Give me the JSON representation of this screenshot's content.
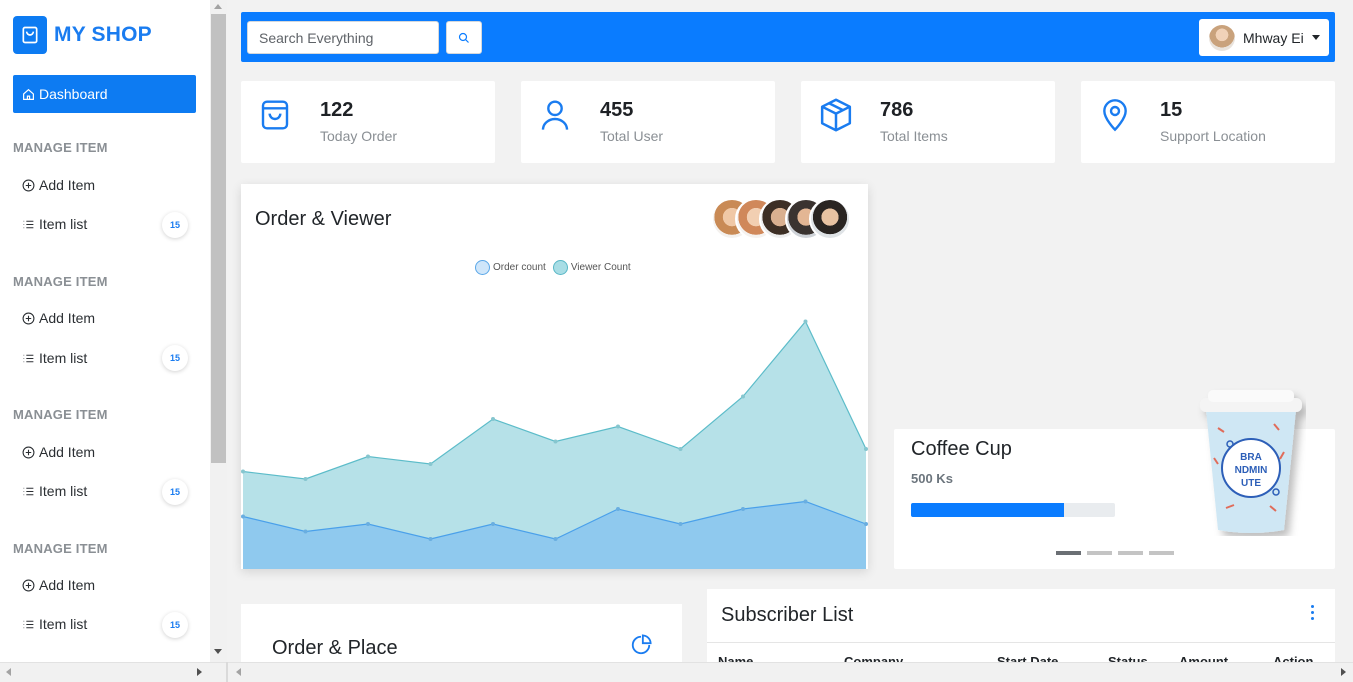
{
  "brand": {
    "name": "MY SHOP"
  },
  "sidebar": {
    "dashboard_label": "Dashboard",
    "sections": [
      {
        "title": "MANAGE ITEM",
        "add_label": "Add Item",
        "list_label": "Item list",
        "count": "15"
      },
      {
        "title": "MANAGE ITEM",
        "add_label": "Add Item",
        "list_label": "Item list",
        "count": "15"
      },
      {
        "title": "MANAGE ITEM",
        "add_label": "Add Item",
        "list_label": "Item list",
        "count": "15"
      },
      {
        "title": "MANAGE ITEM",
        "add_label": "Add Item",
        "list_label": "Item list",
        "count": "15"
      }
    ]
  },
  "topbar": {
    "search_placeholder": "Search Everything",
    "user_name": "Mhway Ei"
  },
  "stats": [
    {
      "value": "122",
      "label": "Today Order",
      "icon": "shopping-bag-icon"
    },
    {
      "value": "455",
      "label": "Total User",
      "icon": "user-icon"
    },
    {
      "value": "786",
      "label": "Total Items",
      "icon": "box-icon"
    },
    {
      "value": "15",
      "label": "Support Location",
      "icon": "location-pin-icon"
    }
  ],
  "order_viewer": {
    "title": "Order & Viewer",
    "chart_data": {
      "type": "area",
      "series": [
        {
          "name": "Order count",
          "values": [
            7,
            5,
            6,
            4,
            6,
            4,
            8,
            6,
            8,
            9,
            6
          ],
          "color": "#8fc9ee"
        },
        {
          "name": "Viewer Count",
          "values": [
            13,
            12,
            15,
            14,
            20,
            17,
            19,
            16,
            23,
            33,
            16
          ],
          "color": "#b6e1e8"
        }
      ],
      "ylim": [
        0,
        40
      ],
      "grid": false,
      "legend_position": "top-center"
    }
  },
  "product": {
    "name": "Coffee Cup",
    "price": "500 Ks",
    "progress": 0.75,
    "cup_text": [
      "BRA",
      "NDMIN",
      "UTE"
    ]
  },
  "order_place": {
    "title": "Order & Place"
  },
  "subscribers": {
    "title": "Subscriber List",
    "columns": [
      "Name",
      "Company",
      "Start Date",
      "Status",
      "Amount",
      "Action"
    ]
  },
  "colors": {
    "primary": "#0a7cff",
    "brand_text": "#1a7cf0"
  }
}
